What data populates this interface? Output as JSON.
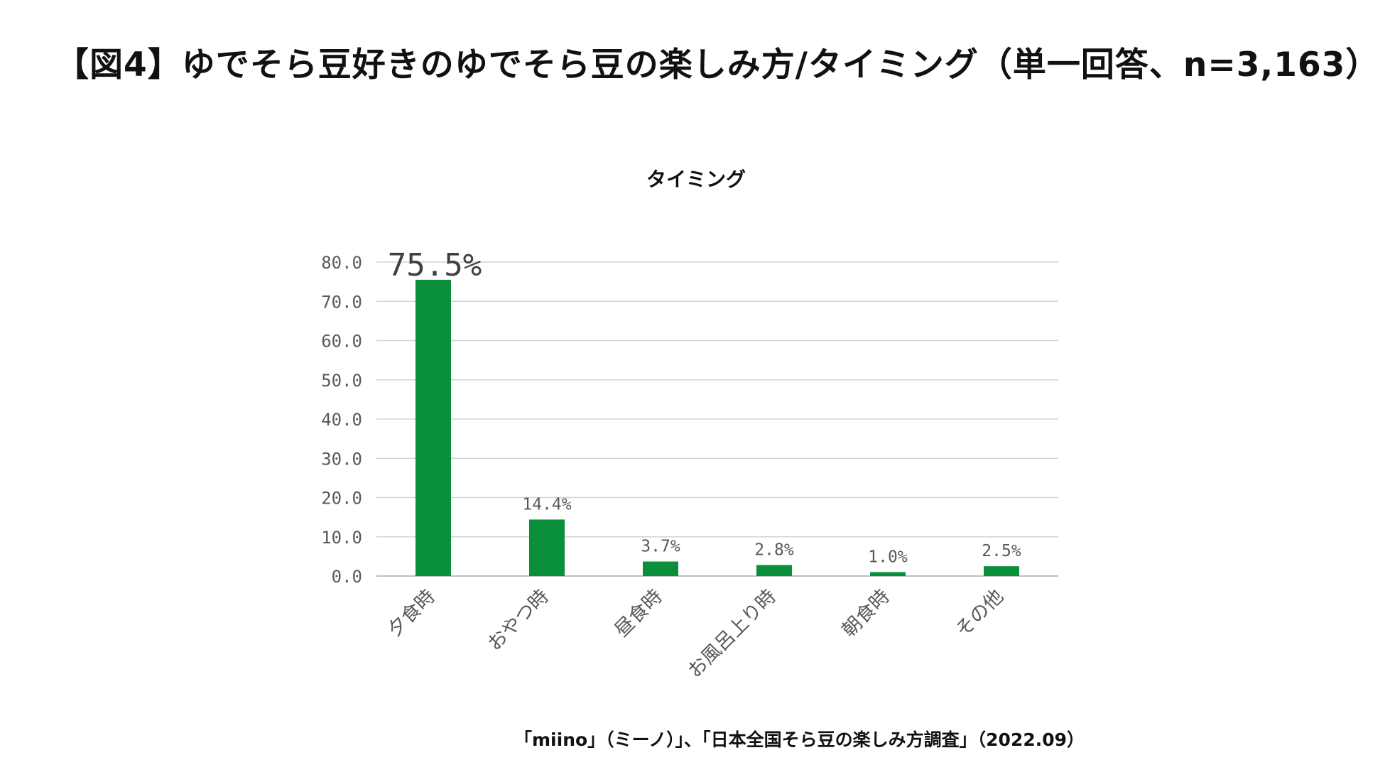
{
  "page": {
    "headline": "【図4】ゆでそら豆好きのゆでそら豆の楽しみ方/タイミング（単一回答、n=3,163）",
    "source": "「miino」（ミーノ）」、「日本全国そら豆の楽しみ方調査」（2022.09）"
  },
  "chart_data": {
    "type": "bar",
    "title": "タイミング",
    "xlabel": "",
    "ylabel": "",
    "categories": [
      "夕食時",
      "おやつ時",
      "昼食時",
      "お風呂上り時",
      "朝食時",
      "その他"
    ],
    "values": [
      75.5,
      14.4,
      3.7,
      2.8,
      1.0,
      2.5
    ],
    "data_labels": [
      "75.5%",
      "14.4%",
      "3.7%",
      "2.8%",
      "1.0%",
      "2.5%"
    ],
    "ylim": [
      0,
      80
    ],
    "yticks": [
      "0.0",
      "10.0",
      "20.0",
      "30.0",
      "40.0",
      "50.0",
      "60.0",
      "70.0",
      "80.0"
    ],
    "grid": true,
    "legend": "none",
    "bar_color": "#0a8f3a",
    "gridline_color": "#d4d4d4",
    "axis_text_color": "#595959"
  }
}
